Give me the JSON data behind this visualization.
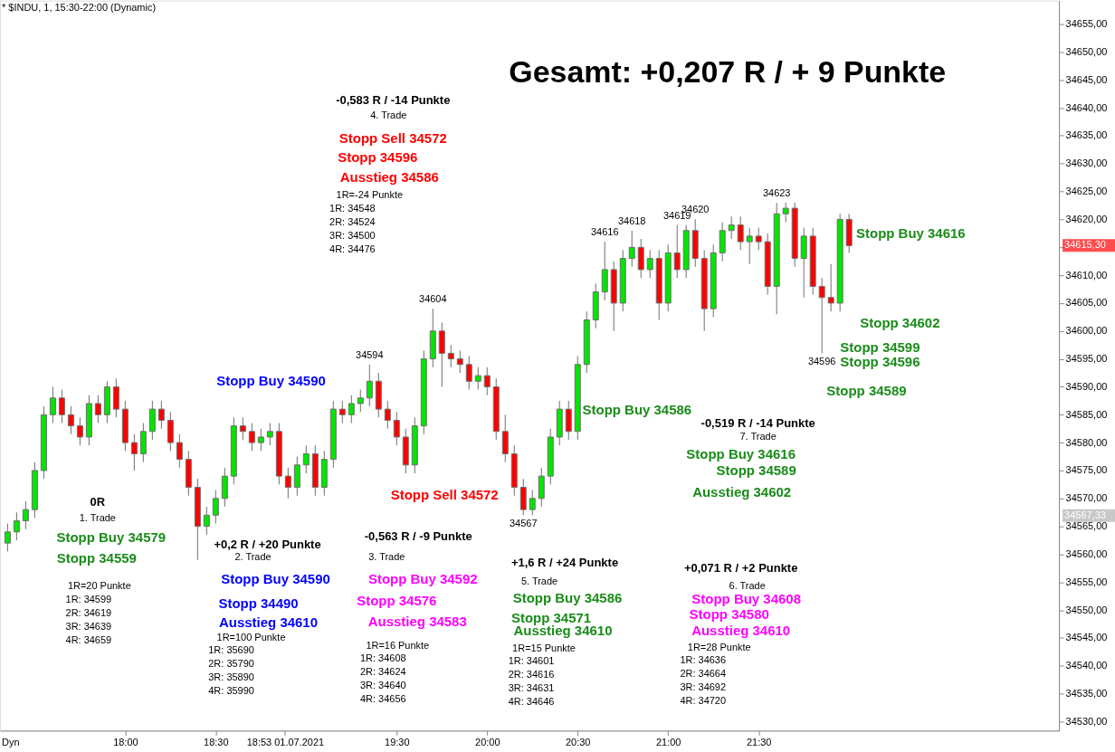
{
  "chart_data": {
    "type": "candlestick",
    "title": "* $INDU, 1, 15:30-22:00 (Dynamic)",
    "x": [
      17.35,
      17.4,
      17.45,
      17.5,
      17.55,
      17.6,
      17.65,
      17.7,
      17.75,
      17.8,
      17.85,
      17.9,
      17.95,
      18.0,
      18.05,
      18.1,
      18.15,
      18.2,
      18.25,
      18.3,
      18.35,
      18.4,
      18.45,
      18.5,
      18.55,
      18.6,
      18.65,
      18.7,
      18.75,
      18.8,
      18.85,
      18.9,
      18.95,
      19.0,
      19.05,
      19.1,
      19.15,
      19.2,
      19.25,
      19.3,
      19.35,
      19.4,
      19.45,
      19.5,
      19.55,
      19.6,
      19.65,
      19.7,
      19.75,
      19.8,
      19.85,
      19.9,
      19.95,
      20.0,
      20.05,
      20.1,
      20.15,
      20.2,
      20.25,
      20.3,
      20.35,
      20.4,
      20.45,
      20.5,
      20.55,
      20.6,
      20.65,
      20.7,
      20.75,
      20.8,
      20.85,
      20.9,
      20.95,
      21.0,
      21.05,
      21.1,
      21.15,
      21.2,
      21.25,
      21.3,
      21.35,
      21.4,
      21.45,
      21.5,
      21.55,
      21.6,
      21.65,
      21.7,
      21.75,
      21.8,
      21.85,
      21.9,
      21.95,
      22.0
    ],
    "ohlc": [
      [
        34562,
        34565.5,
        34560.5,
        34564
      ],
      [
        34564,
        34567.5,
        34562.5,
        34566
      ],
      [
        34566,
        34569.5,
        34564.5,
        34568
      ],
      [
        34568,
        34576.5,
        34566.5,
        34575
      ],
      [
        34575,
        34586.5,
        34573.5,
        34585
      ],
      [
        34585,
        34590,
        34583.5,
        34588
      ],
      [
        34588,
        34589.5,
        34583.5,
        34585
      ],
      [
        34585,
        34586.5,
        34581.5,
        34583
      ],
      [
        34583,
        34584.5,
        34579.5,
        34581
      ],
      [
        34581,
        34588.5,
        34579.5,
        34587
      ],
      [
        34587,
        34588.5,
        34583.5,
        34585
      ],
      [
        34585,
        34591,
        34583.5,
        34590
      ],
      [
        34590,
        34591.5,
        34584.5,
        34586
      ],
      [
        34586,
        34587.5,
        34578.5,
        34580
      ],
      [
        34580,
        34581.5,
        34575,
        34578
      ],
      [
        34578,
        34583.5,
        34576.5,
        34582
      ],
      [
        34582,
        34587.5,
        34580.5,
        34586
      ],
      [
        34586,
        34587.5,
        34582.5,
        34584
      ],
      [
        34584,
        34585.5,
        34578.5,
        34580
      ],
      [
        34580,
        34581.5,
        34575.5,
        34577
      ],
      [
        34577,
        34578.5,
        34570.5,
        34572
      ],
      [
        34572,
        34573.5,
        34559,
        34565
      ],
      [
        34565,
        34568.5,
        34563.5,
        34567
      ],
      [
        34567,
        34571.5,
        34565.5,
        34570
      ],
      [
        34570,
        34575.5,
        34568.5,
        34574
      ],
      [
        34574,
        34584.5,
        34572.5,
        34583
      ],
      [
        34583,
        34584.5,
        34580.5,
        34582
      ],
      [
        34582,
        34583.5,
        34578.5,
        34580
      ],
      [
        34580,
        34582.5,
        34578.5,
        34581
      ],
      [
        34581,
        34583.5,
        34579.5,
        34582
      ],
      [
        34582,
        34583.5,
        34572.5,
        34574
      ],
      [
        34574,
        34575.5,
        34570,
        34572
      ],
      [
        34572,
        34577.5,
        34570.5,
        34576
      ],
      [
        34576,
        34579.5,
        34574.5,
        34578
      ],
      [
        34578,
        34579.5,
        34570.5,
        34572
      ],
      [
        34572,
        34578.5,
        34570.5,
        34577
      ],
      [
        34577,
        34587.5,
        34575.5,
        34586
      ],
      [
        34586,
        34587.5,
        34583.5,
        34585
      ],
      [
        34585,
        34588.5,
        34583.5,
        34587
      ],
      [
        34587,
        34589.5,
        34585.5,
        34588
      ],
      [
        34588,
        34594,
        34586.5,
        34591
      ],
      [
        34591,
        34592.5,
        34584.5,
        34586
      ],
      [
        34586,
        34587.5,
        34582.5,
        34584
      ],
      [
        34584,
        34585.5,
        34579.5,
        34581
      ],
      [
        34581,
        34582.5,
        34574.5,
        34576
      ],
      [
        34576,
        34584.5,
        34574.5,
        34583
      ],
      [
        34583,
        34596.5,
        34581.5,
        34595
      ],
      [
        34595,
        34604,
        34593.5,
        34600
      ],
      [
        34600,
        34601.5,
        34590,
        34596
      ],
      [
        34596,
        34597.5,
        34593.5,
        34595
      ],
      [
        34595,
        34596.5,
        34592.5,
        34594
      ],
      [
        34594,
        34595.5,
        34589.5,
        34591
      ],
      [
        34591,
        34593.5,
        34589.5,
        34592
      ],
      [
        34592,
        34593.5,
        34588.5,
        34590
      ],
      [
        34590,
        34591.5,
        34580.5,
        34582
      ],
      [
        34582,
        34585,
        34576.5,
        34578
      ],
      [
        34578,
        34579.5,
        34570.5,
        34572
      ],
      [
        34572,
        34573.5,
        34567,
        34568
      ],
      [
        34568,
        34571.5,
        34567,
        34570
      ],
      [
        34570,
        34575.5,
        34568.5,
        34574
      ],
      [
        34574,
        34582.5,
        34572.5,
        34581
      ],
      [
        34581,
        34587.5,
        34579.5,
        34586
      ],
      [
        34586,
        34587.5,
        34580.5,
        34582
      ],
      [
        34582,
        34595.5,
        34580.5,
        34594
      ],
      [
        34594,
        34603.5,
        34592.5,
        34602
      ],
      [
        34602,
        34608.5,
        34600.5,
        34607
      ],
      [
        34607,
        34616,
        34605.5,
        34611
      ],
      [
        34611,
        34612.5,
        34600,
        34605
      ],
      [
        34605,
        34614.5,
        34603.5,
        34613
      ],
      [
        34613,
        34618,
        34611.5,
        34615
      ],
      [
        34615,
        34616.5,
        34609.5,
        34611
      ],
      [
        34611,
        34614.5,
        34609.5,
        34613
      ],
      [
        34613,
        34614.5,
        34602,
        34605
      ],
      [
        34605,
        34615.5,
        34603.5,
        34614
      ],
      [
        34614,
        34619,
        34609.5,
        34611
      ],
      [
        34611,
        34619,
        34609.5,
        34618
      ],
      [
        34618,
        34620,
        34611.5,
        34613
      ],
      [
        34613,
        34614.5,
        34600,
        34604
      ],
      [
        34604,
        34615.5,
        34602.5,
        34614
      ],
      [
        34614,
        34619.5,
        34612.5,
        34618
      ],
      [
        34618,
        34620.5,
        34616.5,
        34619
      ],
      [
        34619,
        34620.5,
        34614.5,
        34616
      ],
      [
        34616,
        34618.5,
        34612,
        34617
      ],
      [
        34617,
        34618.5,
        34614.5,
        34616
      ],
      [
        34616,
        34617.5,
        34606.5,
        34608
      ],
      [
        34608,
        34623,
        34603,
        34621
      ],
      [
        34621,
        34623,
        34619.5,
        34622
      ],
      [
        34622,
        34623,
        34611.5,
        34613
      ],
      [
        34613,
        34618.5,
        34606,
        34617
      ],
      [
        34617,
        34618.5,
        34606.5,
        34608
      ],
      [
        34608,
        34609.5,
        34596,
        34606
      ],
      [
        34606,
        34612,
        34603.5,
        34605
      ],
      [
        34605,
        34621,
        34603.5,
        34620
      ],
      [
        34620,
        34621,
        34614,
        34615.3
      ]
    ],
    "colors": [
      "#00e600",
      "#00e600",
      "#00e600",
      "#00e600",
      "#00e600",
      "#00e600",
      "#ff0000",
      "#ff0000",
      "#ff0000",
      "#00e600",
      "#ff0000",
      "#00e600",
      "#ff0000",
      "#ff0000",
      "#ff0000",
      "#00e600",
      "#00e600",
      "#ff0000",
      "#ff0000",
      "#ff0000",
      "#ff0000",
      "#ff0000",
      "#00e600",
      "#00e600",
      "#00e600",
      "#00e600",
      "#ff0000",
      "#ff0000",
      "#00e600",
      "#00e600",
      "#ff0000",
      "#ff0000",
      "#00e600",
      "#00e600",
      "#ff0000",
      "#00e600",
      "#00e600",
      "#ff0000",
      "#00e600",
      "#00e600",
      "#00e600",
      "#ff0000",
      "#ff0000",
      "#ff0000",
      "#ff0000",
      "#00e600",
      "#00e600",
      "#00e600",
      "#ff0000",
      "#ff0000",
      "#ff0000",
      "#ff0000",
      "#00e600",
      "#ff0000",
      "#ff0000",
      "#ff0000",
      "#ff0000",
      "#ff0000",
      "#00e600",
      "#00e600",
      "#00e600",
      "#00e600",
      "#ff0000",
      "#00e600",
      "#00e600",
      "#00e600",
      "#00e600",
      "#ff0000",
      "#00e600",
      "#00e600",
      "#ff0000",
      "#00e600",
      "#ff0000",
      "#00e600",
      "#ff0000",
      "#00e600",
      "#ff0000",
      "#ff0000",
      "#00e600",
      "#00e600",
      "#00e600",
      "#ff0000",
      "#00e600",
      "#ff0000",
      "#ff0000",
      "#00e600",
      "#00e600",
      "#ff0000",
      "#00e600",
      "#ff0000",
      "#ff0000",
      "#ff0000",
      "#00e600",
      "#ff0000"
    ],
    "xlim": [
      17.333,
      23.135
    ],
    "xticks": [
      {
        "value": 18,
        "label": "18:00"
      },
      {
        "value": 18.5,
        "label": "18:30"
      },
      {
        "value": 18.8833,
        "label": "18:53 01.07.2021"
      },
      {
        "value": 19.5,
        "label": "19:30"
      },
      {
        "value": 20,
        "label": "20:00"
      },
      {
        "value": 20.5,
        "label": "20:30"
      },
      {
        "value": 21,
        "label": "21:00"
      },
      {
        "value": 21.5,
        "label": "21:30"
      }
    ],
    "ylim": [
      34528.4,
      34659.2
    ],
    "yticks": [
      {
        "value": 34530,
        "label": "34530,00"
      },
      {
        "value": 34535,
        "label": "34535,00"
      },
      {
        "value": 34540,
        "label": "34540,00"
      },
      {
        "value": 34545,
        "label": "34545,00"
      },
      {
        "value": 34550,
        "label": "34550,00"
      },
      {
        "value": 34555,
        "label": "34555,00"
      },
      {
        "value": 34560,
        "label": "34560,00"
      },
      {
        "value": 34565,
        "label": "34565,00"
      },
      {
        "value": 34570,
        "label": "34570,00"
      },
      {
        "value": 34575,
        "label": "34575,00"
      },
      {
        "value": 34580,
        "label": "34580,00"
      },
      {
        "value": 34585,
        "label": "34585,00"
      },
      {
        "value": 34590,
        "label": "34590,00"
      },
      {
        "value": 34595,
        "label": "34595,00"
      },
      {
        "value": 34600,
        "label": "34600,00"
      },
      {
        "value": 34605,
        "label": "34605,00"
      },
      {
        "value": 34610,
        "label": "34610,00"
      },
      {
        "value": 34615,
        "label": null
      },
      {
        "value": 34620,
        "label": "34620,00"
      },
      {
        "value": 34625,
        "label": "34625,00"
      },
      {
        "value": 34630,
        "label": "34630,00"
      },
      {
        "value": 34635,
        "label": "34635,00"
      },
      {
        "value": 34640,
        "label": "34640,00"
      },
      {
        "value": 34645,
        "label": "34645,00"
      },
      {
        "value": 34650,
        "label": "34650,00"
      },
      {
        "value": 34655,
        "label": "34655,00"
      }
    ],
    "grid": false,
    "annotations": [
      "Gesamt: +0,207 R / + 9 Punkte",
      "-0,583 R / -14 Punkte",
      "4. Trade",
      "Stopp Sell 34572",
      "Stopp 34596",
      "Ausstieg 34586",
      "1R=-24 Punkte",
      "1R: 34548",
      "2R: 34524",
      "3R: 34500",
      "4R: 34476",
      "Stopp Buy 34590",
      "Stopp Buy 34586",
      "Stopp Buy 34616",
      "Stopp 34602",
      "Stopp 34599",
      "Stopp 34596",
      "Stopp 34589",
      "-0,519 R / -14 Punkte",
      "7. Trade",
      "Stopp Buy 34616",
      "Stopp 34589",
      "Ausstieg 34602",
      "Stopp Sell 34572",
      "0R",
      "1. Trade",
      "Stopp Buy 34579",
      "Stopp 34559",
      "1R=20 Punkte",
      "1R: 34599",
      "2R: 34619",
      "3R: 34639",
      "4R: 34659",
      "+0,2 R / +20 Punkte",
      "2. Trade",
      "Stopp Buy 34590",
      "Stopp 34490",
      "Ausstieg 34610",
      "1R=100 Punkte",
      "1R: 35690",
      "2R: 35790",
      "3R: 35890",
      "4R: 35990",
      "-0,563 R / -9 Punkte",
      "3. Trade",
      "Stopp Buy 34592",
      "Stopp 34576",
      "Ausstieg 34583",
      "1R=16 Punkte",
      "1R: 34608",
      "2R: 34624",
      "3R: 34640",
      "4R: 34656",
      "+1,6 R / +24 Punkte",
      "5. Trade",
      "Stopp Buy 34586",
      "Stopp 34571",
      "Ausstieg 34610",
      "1R=15 Punkte",
      "1R: 34601",
      "2R: 34616",
      "3R: 34631",
      "4R: 34646",
      "+0,071 R / +2 Punkte",
      "6. Trade",
      "Stopp Buy 34608",
      "Stopp 34580",
      "Ausstieg 34610",
      "1R=28 Punkte",
      "1R: 34636",
      "2R: 34664",
      "3R: 34692",
      "4R: 34720",
      "34615,30",
      "34567,33",
      "Dyn",
      {
        "text": "34604",
        "x": 19.7,
        "y": 34604
      },
      {
        "text": "34594",
        "x": 19.35,
        "y": 34594
      },
      {
        "text": "34567",
        "x": 20.2,
        "y": 34567
      },
      {
        "text": "34616",
        "x": 20.65,
        "y": 34616
      },
      {
        "text": "34618",
        "x": 20.8,
        "y": 34618
      },
      {
        "text": "34619",
        "x": 21.05,
        "y": 34619
      },
      {
        "text": "34620",
        "x": 21.15,
        "y": 34620
      },
      {
        "text": "34623",
        "x": 21.6,
        "y": 34623
      },
      {
        "text": "34596",
        "x": 21.85,
        "y": 34596
      }
    ]
  }
}
